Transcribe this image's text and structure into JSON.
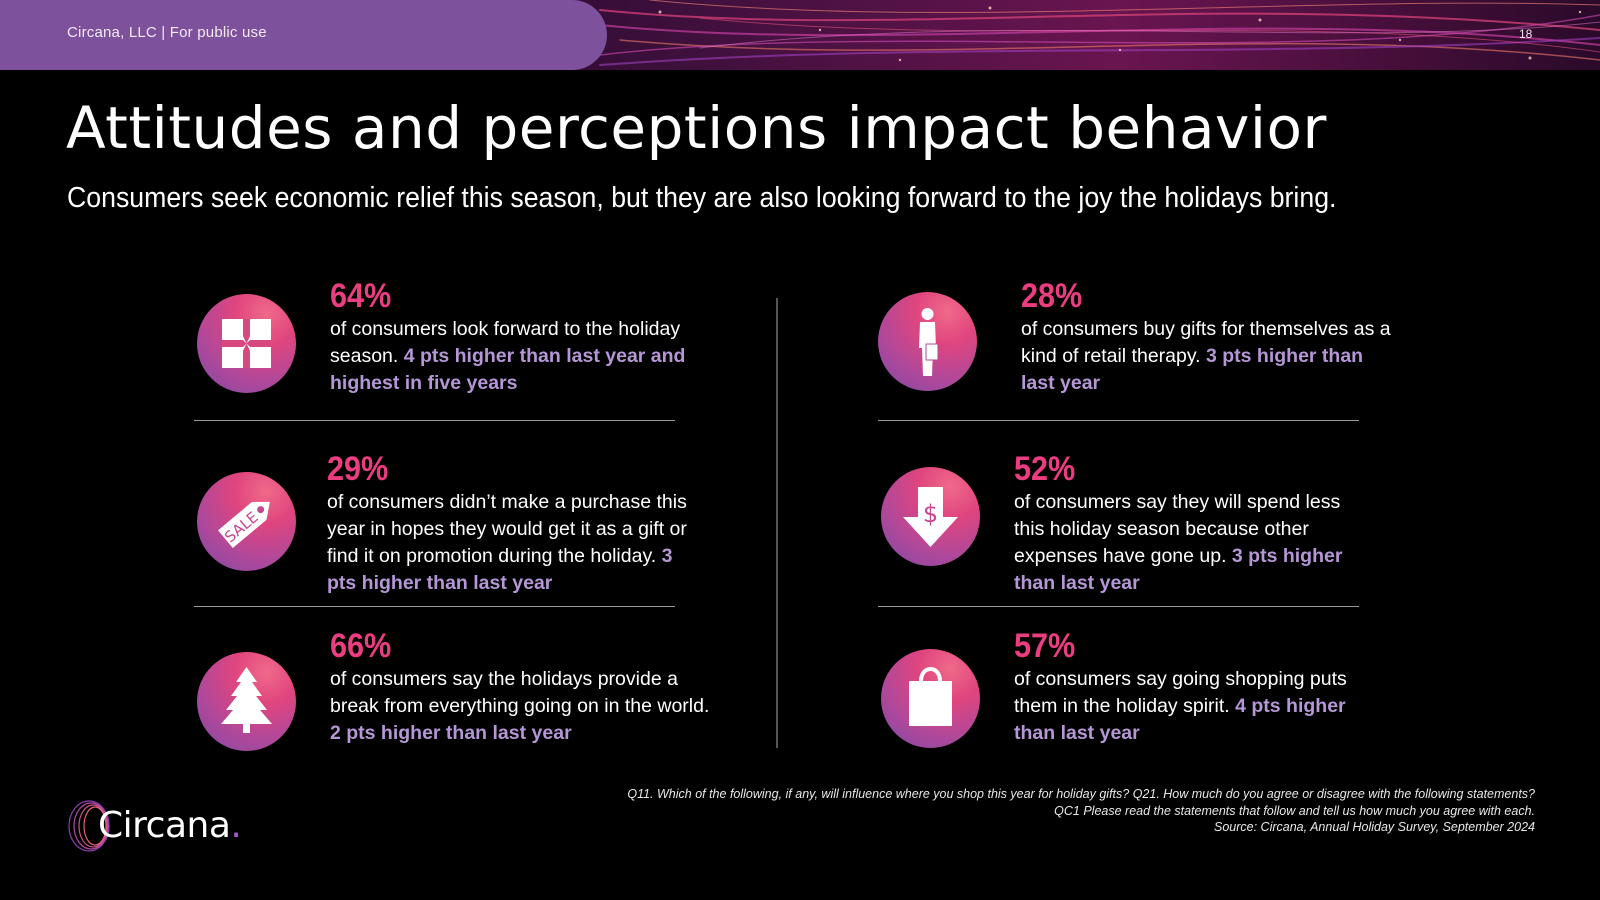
{
  "header": {
    "banner_text": "Circana, LLC |  For public use",
    "page_number": "18"
  },
  "title": "Attitudes and perceptions impact behavior",
  "subtitle": "Consumers seek economic relief this season, but they are also looking forward to the joy the holidays bring.",
  "stats": [
    {
      "icon": "gift-icon",
      "percent": "64%",
      "text": "of consumers look forward to the holiday season. ",
      "highlight": "4 pts higher than last year and highest in five years"
    },
    {
      "icon": "sale-tag-icon",
      "percent": "29%",
      "text": "of consumers didn’t make a purchase this year in hopes they would get it as a gift or find it on promotion during the holiday. ",
      "highlight": "3 pts higher than last year"
    },
    {
      "icon": "christmas-tree-icon",
      "percent": "66%",
      "text": "of consumers say the holidays provide a break from everything going on in the world. ",
      "highlight": "2 pts higher than last year"
    },
    {
      "icon": "person-shopping-icon",
      "percent": "28%",
      "text": "of consumers buy gifts for themselves as a kind of retail therapy. ",
      "highlight": "3 pts higher than last year"
    },
    {
      "icon": "dollar-down-arrow-icon",
      "percent": "52%",
      "text": "of consumers say they will spend less this holiday season because other expenses have gone up. ",
      "highlight": "3 pts higher than last year"
    },
    {
      "icon": "shopping-bag-icon",
      "percent": "57%",
      "text": "of consumers say going shopping puts them in the holiday spirit. ",
      "highlight": "4 pts higher than last year"
    }
  ],
  "footnote": {
    "line1": "Q11. Which of the following, if any, will influence where you shop this year for holiday gifts? Q21. How much do you agree or disagree with the following statements?",
    "line2": "QC1 Please read the statements that follow and tell us how much you agree with each.",
    "line3": "Source: Circana, Annual Holiday Survey, September 2024"
  },
  "logo": {
    "text": "Circana",
    "dot": "."
  },
  "colors": {
    "accent": "#ec3c82",
    "highlight": "#b596d6",
    "banner": "#7d519b"
  },
  "sale_tag_text": "SALE",
  "dollar_symbol": "$"
}
